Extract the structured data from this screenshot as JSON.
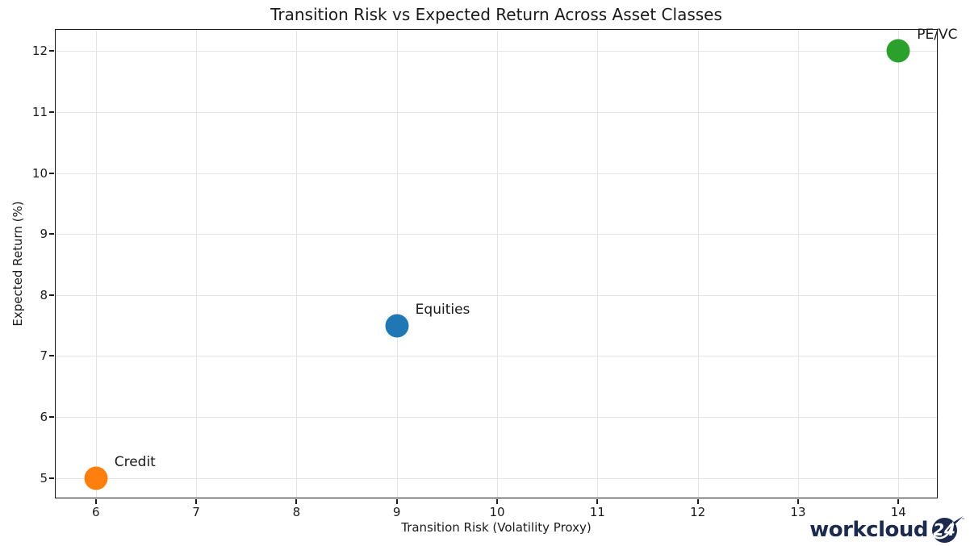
{
  "chart_data": {
    "type": "scatter",
    "title": "Transition Risk vs Expected Return Across Asset Classes",
    "xlabel": "Transition Risk (Volatility Proxy)",
    "ylabel": "Expected Return (%)",
    "xlim": [
      5.6,
      14.4
    ],
    "ylim": [
      4.65,
      12.35
    ],
    "xticks": [
      6,
      7,
      8,
      9,
      10,
      11,
      12,
      13,
      14
    ],
    "yticks": [
      5,
      6,
      7,
      8,
      9,
      10,
      11,
      12
    ],
    "grid": true,
    "legend": "none",
    "points": [
      {
        "label": "Credit",
        "x": 6,
        "y": 5,
        "color": "#ff7f0e"
      },
      {
        "label": "Equities",
        "x": 9,
        "y": 7.5,
        "color": "#1f77b4"
      },
      {
        "label": "PE/VC",
        "x": 14,
        "y": 12,
        "color": "#2ca02c"
      }
    ]
  },
  "branding": {
    "logo_text": "workcloud",
    "logo_badge": "24",
    "logo_color": "#1b2a4d"
  }
}
